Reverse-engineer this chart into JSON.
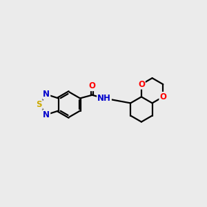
{
  "background_color": "#ebebeb",
  "bond_color": "#000000",
  "bond_width": 1.6,
  "dbo": 0.06,
  "atom_colors": {
    "N": "#0000cc",
    "S": "#ccaa00",
    "O": "#ff0000",
    "C": "#000000",
    "H": "#555555"
  },
  "font_size": 8.5,
  "xlim": [
    -0.3,
    9.7
  ],
  "ylim": [
    1.0,
    7.8
  ]
}
